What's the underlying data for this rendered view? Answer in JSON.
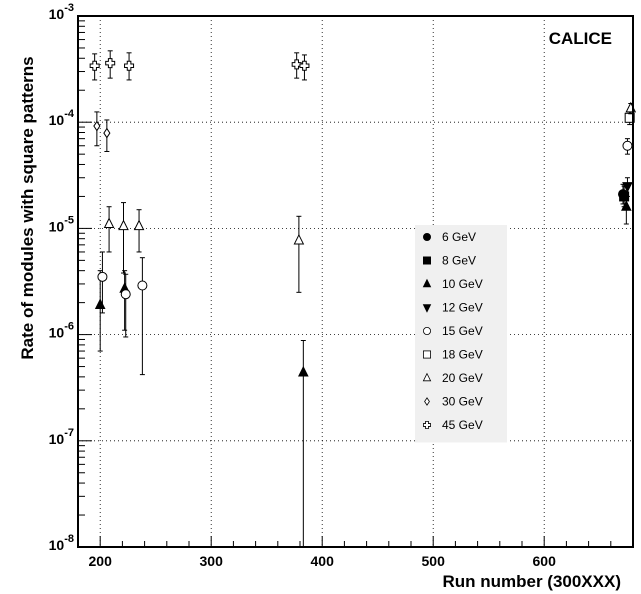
{
  "chart_data": {
    "type": "scatter",
    "title": "",
    "tag": "CALICE",
    "xlabel": "Run number (300XXX)",
    "ylabel": "Rate of modules with square patterns",
    "xlim": [
      180,
      680
    ],
    "ylim": [
      1e-08,
      0.001
    ],
    "yscale": "log",
    "grid": true,
    "legend_position": "center-right",
    "x_ticks": [
      "200",
      "300",
      "400",
      "500",
      "600"
    ],
    "y_ticks": [
      {
        "base": "10",
        "exp": "-8"
      },
      {
        "base": "10",
        "exp": "-7"
      },
      {
        "base": "10",
        "exp": "-6"
      },
      {
        "base": "10",
        "exp": "-5"
      },
      {
        "base": "10",
        "exp": "-4"
      },
      {
        "base": "10",
        "exp": "-3"
      }
    ],
    "series": [
      {
        "name": "6 GeV",
        "marker": "filled-circle",
        "points": [
          {
            "x": 671,
            "y": 2.1e-05,
            "lo": 1.7e-05,
            "hi": 2.6e-05
          }
        ]
      },
      {
        "name": "8 GeV",
        "marker": "filled-square",
        "points": [
          {
            "x": 672,
            "y": 2e-05,
            "lo": 1.6e-05,
            "hi": 2.5e-05
          }
        ]
      },
      {
        "name": "10 GeV",
        "marker": "filled-triangle-up",
        "points": [
          {
            "x": 200,
            "y": 1.9e-06,
            "lo": 7e-07,
            "hi": 4e-06
          },
          {
            "x": 222,
            "y": 2.7e-06,
            "lo": 1.1e-06,
            "hi": 4e-06
          },
          {
            "x": 383,
            "y": 4.4e-07,
            "lo": 1e-08,
            "hi": 8.8e-07
          },
          {
            "x": 674,
            "y": 1.6e-05,
            "lo": 1.1e-05,
            "hi": 2e-05
          }
        ]
      },
      {
        "name": "12 GeV",
        "marker": "filled-triangle-down",
        "points": [
          {
            "x": 675,
            "y": 2.5e-05,
            "lo": 2e-05,
            "hi": 3e-05
          }
        ]
      },
      {
        "name": "15 GeV",
        "marker": "open-circle",
        "points": [
          {
            "x": 202,
            "y": 3.5e-06,
            "lo": 1.6e-06,
            "hi": 6e-06
          },
          {
            "x": 223,
            "y": 2.4e-06,
            "lo": 9.5e-07,
            "hi": 3.7e-06
          },
          {
            "x": 238,
            "y": 2.9e-06,
            "lo": 4.2e-07,
            "hi": 5.3e-06
          },
          {
            "x": 675,
            "y": 6e-05,
            "lo": 5e-05,
            "hi": 7e-05
          }
        ]
      },
      {
        "name": "18 GeV",
        "marker": "open-square",
        "points": [
          {
            "x": 677,
            "y": 0.00011,
            "lo": 9.5e-05,
            "hi": 0.000125
          }
        ]
      },
      {
        "name": "20 GeV",
        "marker": "open-triangle-up",
        "points": [
          {
            "x": 208,
            "y": 1.1e-05,
            "lo": 6e-06,
            "hi": 1.6e-05
          },
          {
            "x": 221,
            "y": 1.05e-05,
            "lo": 3.8e-06,
            "hi": 1.75e-05
          },
          {
            "x": 235,
            "y": 1.05e-05,
            "lo": 6e-06,
            "hi": 1.5e-05
          },
          {
            "x": 379,
            "y": 7.7e-06,
            "lo": 2.5e-06,
            "hi": 1.3e-05
          },
          {
            "x": 678,
            "y": 0.000135,
            "lo": 0.00012,
            "hi": 0.00015
          }
        ]
      },
      {
        "name": "30 GeV",
        "marker": "open-diamond",
        "points": [
          {
            "x": 197,
            "y": 9.2e-05,
            "lo": 6e-05,
            "hi": 0.000125
          },
          {
            "x": 206,
            "y": 7.9e-05,
            "lo": 5.3e-05,
            "hi": 0.000105
          }
        ]
      },
      {
        "name": "45 GeV",
        "marker": "open-cross",
        "points": [
          {
            "x": 195,
            "y": 0.00034,
            "lo": 0.00025,
            "hi": 0.00044
          },
          {
            "x": 209,
            "y": 0.00036,
            "lo": 0.00026,
            "hi": 0.00047
          },
          {
            "x": 226,
            "y": 0.00034,
            "lo": 0.00025,
            "hi": 0.00045
          },
          {
            "x": 377,
            "y": 0.00035,
            "lo": 0.00026,
            "hi": 0.00045
          },
          {
            "x": 384,
            "y": 0.00034,
            "lo": 0.00025,
            "hi": 0.00043
          }
        ]
      }
    ]
  }
}
